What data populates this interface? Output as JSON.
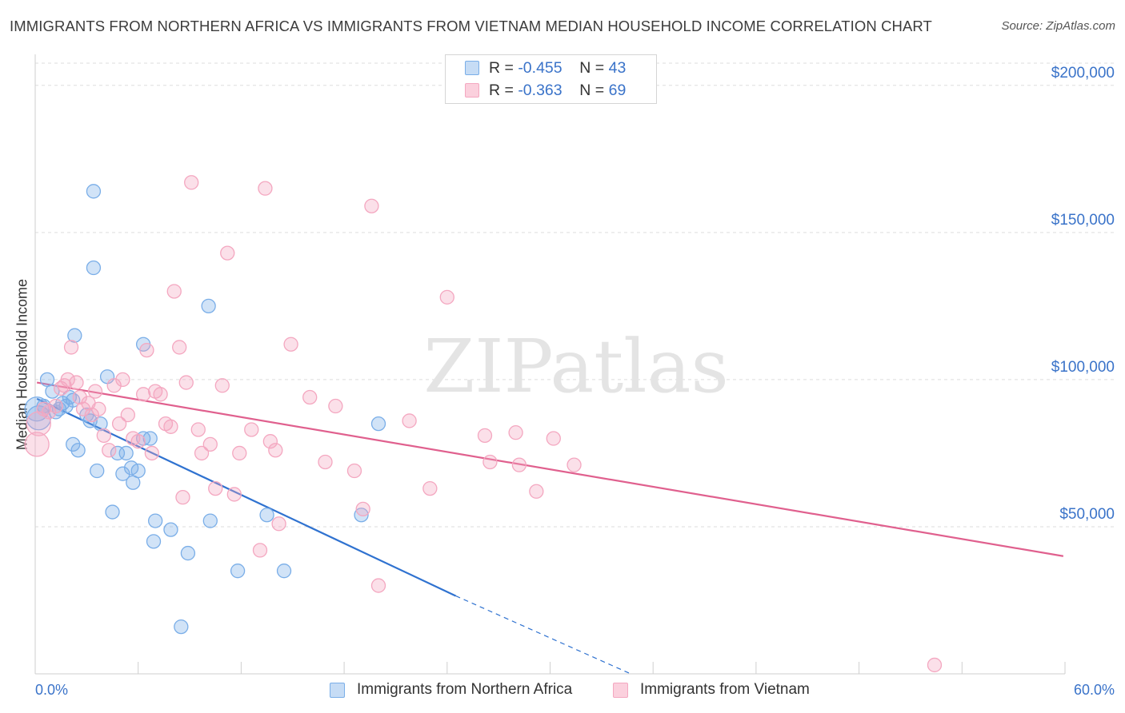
{
  "title": "IMMIGRANTS FROM NORTHERN AFRICA VS IMMIGRANTS FROM VIETNAM MEDIAN HOUSEHOLD INCOME CORRELATION CHART",
  "source": "Source: ZipAtlas.com",
  "watermark": "ZIPatlas",
  "legend_top": {
    "rows": [
      {
        "r_label": "R = ",
        "r_value": "-0.455",
        "n_label": "N = ",
        "n_value": "43"
      },
      {
        "r_label": "R = ",
        "r_value": "-0.363",
        "n_label": "N = ",
        "n_value": "69"
      }
    ]
  },
  "chart_data": {
    "type": "scatter",
    "ylabel": "Median Household Income",
    "xlim": [
      0,
      60
    ],
    "ylim": [
      0,
      210000
    ],
    "x_tick_labels": [
      "0.0%",
      "60.0%"
    ],
    "y_ticks": [
      {
        "value": 50000,
        "label": "$50,000"
      },
      {
        "value": 100000,
        "label": "$100,000"
      },
      {
        "value": 150000,
        "label": "$150,000"
      },
      {
        "value": 200000,
        "label": "$200,000"
      }
    ],
    "grid": true,
    "legend_position": "top-center",
    "series": [
      {
        "name": "Immigrants from Northern Africa",
        "color": "#7aaee8",
        "line_color": "#2f72d0",
        "regression": {
          "x_start": 0.1,
          "y_start": 93500,
          "x_end": 24.5,
          "y_end": 26500,
          "dashed_to_x": 34.7,
          "dashed_to_y": 0
        },
        "points": [
          [
            0.2,
            87000
          ],
          [
            0.5,
            91000
          ],
          [
            0.7,
            100000
          ],
          [
            1.0,
            96000
          ],
          [
            1.2,
            89000
          ],
          [
            1.4,
            90000
          ],
          [
            1.6,
            92000
          ],
          [
            1.8,
            91000
          ],
          [
            2.0,
            94000
          ],
          [
            2.2,
            93000
          ],
          [
            2.3,
            115000
          ],
          [
            2.2,
            78000
          ],
          [
            2.5,
            76000
          ],
          [
            3.0,
            88000
          ],
          [
            3.2,
            86000
          ],
          [
            3.4,
            164000
          ],
          [
            3.4,
            138000
          ],
          [
            3.6,
            69000
          ],
          [
            3.8,
            85000
          ],
          [
            4.2,
            101000
          ],
          [
            4.5,
            55000
          ],
          [
            4.8,
            75000
          ],
          [
            5.1,
            68000
          ],
          [
            5.3,
            75000
          ],
          [
            5.6,
            70000
          ],
          [
            5.7,
            65000
          ],
          [
            6.0,
            69000
          ],
          [
            6.3,
            112000
          ],
          [
            6.3,
            80000
          ],
          [
            6.7,
            80000
          ],
          [
            6.9,
            45000
          ],
          [
            7.0,
            52000
          ],
          [
            7.9,
            49000
          ],
          [
            8.5,
            16000
          ],
          [
            8.9,
            41000
          ],
          [
            10.1,
            125000
          ],
          [
            10.2,
            52000
          ],
          [
            11.8,
            35000
          ],
          [
            13.5,
            54000
          ],
          [
            14.5,
            35000
          ],
          [
            19.0,
            54000
          ],
          [
            20.0,
            85000
          ],
          [
            0.1,
            90000
          ]
        ]
      },
      {
        "name": "Immigrants from Vietnam",
        "color": "#f4a7c0",
        "line_color": "#e0608e",
        "regression": {
          "x_start": 0.1,
          "y_start": 99000,
          "x_end": 59.9,
          "y_end": 40000
        },
        "points": [
          [
            0.1,
            78000
          ],
          [
            0.2,
            85000
          ],
          [
            0.5,
            90000
          ],
          [
            0.8,
            89000
          ],
          [
            1.2,
            91000
          ],
          [
            1.5,
            97000
          ],
          [
            1.7,
            98000
          ],
          [
            1.9,
            100000
          ],
          [
            2.1,
            111000
          ],
          [
            2.4,
            99000
          ],
          [
            2.6,
            94000
          ],
          [
            2.8,
            90000
          ],
          [
            3.1,
            92000
          ],
          [
            3.3,
            88000
          ],
          [
            3.5,
            96000
          ],
          [
            3.7,
            90000
          ],
          [
            4.0,
            81000
          ],
          [
            4.3,
            76000
          ],
          [
            4.6,
            98000
          ],
          [
            4.9,
            85000
          ],
          [
            5.1,
            100000
          ],
          [
            5.4,
            88000
          ],
          [
            5.7,
            80000
          ],
          [
            6.0,
            79000
          ],
          [
            6.3,
            95000
          ],
          [
            6.5,
            110000
          ],
          [
            6.8,
            75000
          ],
          [
            7.0,
            96000
          ],
          [
            7.3,
            95000
          ],
          [
            7.6,
            85000
          ],
          [
            7.9,
            84000
          ],
          [
            8.1,
            130000
          ],
          [
            8.4,
            111000
          ],
          [
            8.6,
            60000
          ],
          [
            8.8,
            99000
          ],
          [
            9.1,
            167000
          ],
          [
            9.5,
            83000
          ],
          [
            9.7,
            75000
          ],
          [
            10.2,
            78000
          ],
          [
            10.5,
            63000
          ],
          [
            10.9,
            98000
          ],
          [
            11.2,
            143000
          ],
          [
            11.6,
            61000
          ],
          [
            11.9,
            75000
          ],
          [
            12.6,
            83000
          ],
          [
            13.1,
            42000
          ],
          [
            13.4,
            165000
          ],
          [
            13.7,
            79000
          ],
          [
            14.0,
            76000
          ],
          [
            14.2,
            51000
          ],
          [
            14.9,
            112000
          ],
          [
            16.0,
            94000
          ],
          [
            16.9,
            72000
          ],
          [
            17.5,
            91000
          ],
          [
            18.6,
            69000
          ],
          [
            19.1,
            56000
          ],
          [
            19.6,
            159000
          ],
          [
            20.0,
            30000
          ],
          [
            21.8,
            86000
          ],
          [
            23.0,
            63000
          ],
          [
            24.0,
            128000
          ],
          [
            26.2,
            81000
          ],
          [
            26.5,
            72000
          ],
          [
            28.0,
            82000
          ],
          [
            28.2,
            71000
          ],
          [
            29.2,
            62000
          ],
          [
            30.2,
            80000
          ],
          [
            31.4,
            71000
          ],
          [
            52.4,
            3000
          ]
        ]
      }
    ]
  }
}
